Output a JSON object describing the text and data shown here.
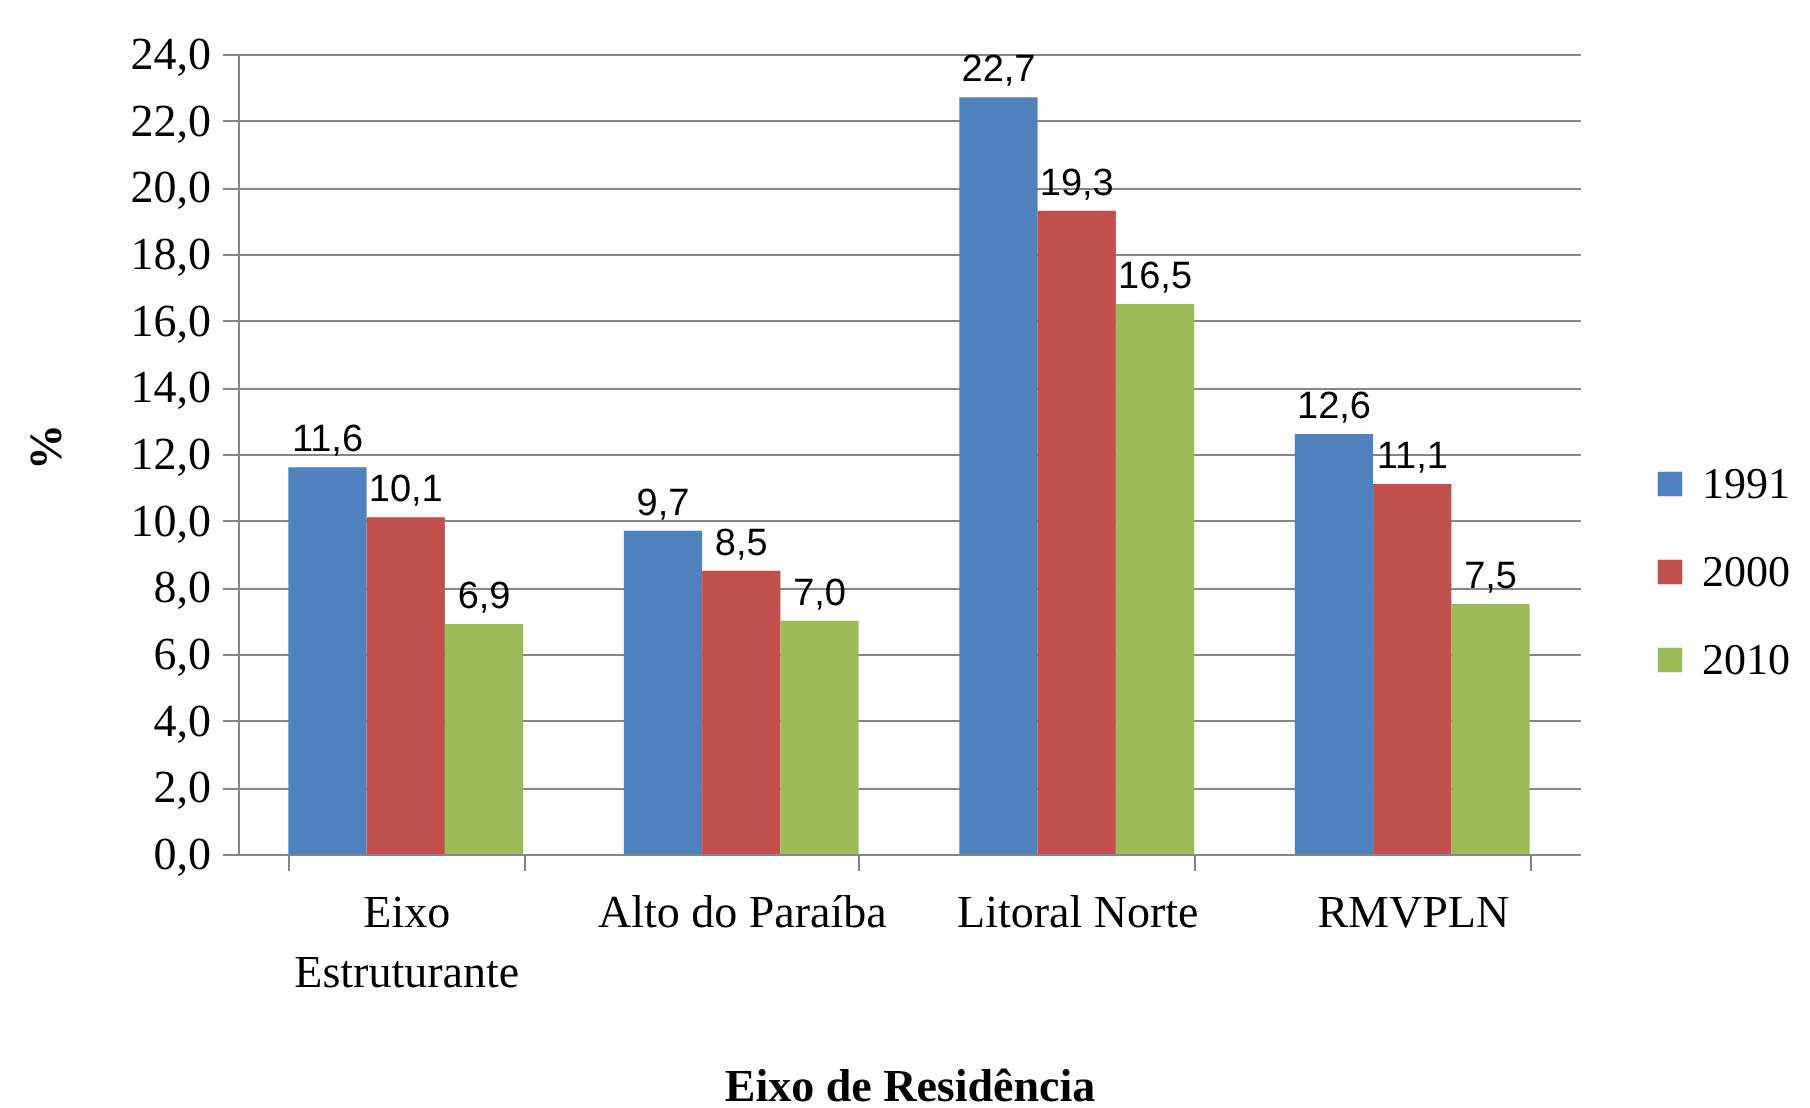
{
  "chart_data": {
    "type": "bar",
    "xlabel": "Eixo de Residência",
    "ylabel": "%",
    "categories": [
      "Eixo Estruturante",
      "Alto do Paraíba",
      "Litoral Norte",
      "RMVPLN"
    ],
    "series": [
      {
        "name": "1991",
        "color": "#4f81bd",
        "values": [
          11.6,
          9.7,
          22.7,
          12.6
        ],
        "value_labels": [
          "11,6",
          "9,7",
          "22,7",
          "12,6"
        ]
      },
      {
        "name": "2000",
        "color": "#c0504d",
        "values": [
          10.1,
          8.5,
          19.3,
          11.1
        ],
        "value_labels": [
          "10,1",
          "8,5",
          "19,3",
          "11,1"
        ]
      },
      {
        "name": "2010",
        "color": "#9bbb59",
        "values": [
          6.9,
          7.0,
          16.5,
          7.5
        ],
        "value_labels": [
          "6,9",
          "7,0",
          "16,5",
          "7,5"
        ]
      }
    ],
    "ylim": [
      0,
      24
    ],
    "yticks": [
      {
        "value": 0,
        "label": "0,0"
      },
      {
        "value": 2,
        "label": "2,0"
      },
      {
        "value": 4,
        "label": "4,0"
      },
      {
        "value": 6,
        "label": "6,0"
      },
      {
        "value": 8,
        "label": "8,0"
      },
      {
        "value": 10,
        "label": "10,0"
      },
      {
        "value": 12,
        "label": "12,0"
      },
      {
        "value": 14,
        "label": "14,0"
      },
      {
        "value": 16,
        "label": "16,0"
      },
      {
        "value": 18,
        "label": "18,0"
      },
      {
        "value": 20,
        "label": "20,0"
      },
      {
        "value": 22,
        "label": "22,0"
      },
      {
        "value": 24,
        "label": "24,0"
      }
    ],
    "grid": "y",
    "legend": "right"
  }
}
